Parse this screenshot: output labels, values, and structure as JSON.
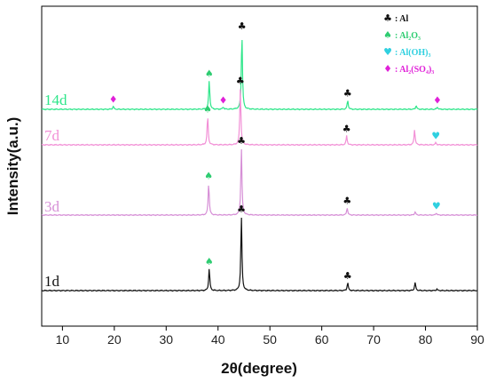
{
  "chart_data": {
    "type": "line",
    "xlabel": "2θ(degree)",
    "ylabel": "Intensity(a.u.)",
    "xlim": [
      6,
      90
    ],
    "xticks": [
      10,
      20,
      30,
      40,
      50,
      60,
      70,
      80,
      90
    ],
    "y_tick_labels": false,
    "legend_position": "top-right",
    "legend": [
      {
        "key": "al",
        "symbol": "♣",
        "color": "#111111",
        "text": ": Al"
      },
      {
        "key": "al2o3",
        "symbol": "♠",
        "color": "#2ecc71",
        "text": ": Al₂O₃"
      },
      {
        "key": "aloh3",
        "symbol": "♥",
        "color": "#2fd0e0",
        "text": ": Al(OH)₃"
      },
      {
        "key": "al2so43",
        "symbol": "♦",
        "color": "#e020d8",
        "text": ": Al₂(SO₄)₃"
      }
    ],
    "series": [
      {
        "name": "14d",
        "color": "#2ee68a",
        "peaks": [
          [
            19.8,
            0.04
          ],
          [
            38.3,
            0.38
          ],
          [
            41.0,
            0.03
          ],
          [
            44.6,
            1.0
          ],
          [
            65.0,
            0.12
          ],
          [
            78.2,
            0.05
          ],
          [
            82.3,
            0.03
          ]
        ],
        "markers": [
          {
            "x": 19.8,
            "symbol": "♦",
            "color": "#e020d8"
          },
          {
            "x": 38.3,
            "symbol": "♠",
            "color": "#2ecc71"
          },
          {
            "x": 41.0,
            "symbol": "♦",
            "color": "#e020d8"
          },
          {
            "x": 44.6,
            "symbol": "♣",
            "color": "#111111"
          },
          {
            "x": 65.0,
            "symbol": "♣",
            "color": "#111111"
          },
          {
            "x": 82.3,
            "symbol": "♦",
            "color": "#e020d8"
          }
        ]
      },
      {
        "name": "7d",
        "color": "#f290d6",
        "peaks": [
          [
            38.0,
            0.38
          ],
          [
            44.3,
            0.75
          ],
          [
            64.8,
            0.12
          ],
          [
            77.9,
            0.2
          ],
          [
            82.0,
            0.03
          ]
        ],
        "markers": [
          {
            "x": 38.0,
            "symbol": "♠",
            "color": "#2ecc71"
          },
          {
            "x": 44.3,
            "symbol": "♣",
            "color": "#111111"
          },
          {
            "x": 64.8,
            "symbol": "♣",
            "color": "#111111"
          },
          {
            "x": 82.0,
            "symbol": "♥",
            "color": "#2fd0e0"
          }
        ]
      },
      {
        "name": "3d",
        "color": "#d68fd6",
        "peaks": [
          [
            38.2,
            0.48
          ],
          [
            44.5,
            1.0
          ],
          [
            64.9,
            0.11
          ],
          [
            78.0,
            0.05
          ],
          [
            82.1,
            0.03
          ]
        ],
        "markers": [
          {
            "x": 38.2,
            "symbol": "♠",
            "color": "#2ecc71"
          },
          {
            "x": 44.5,
            "symbol": "♣",
            "color": "#111111"
          },
          {
            "x": 64.9,
            "symbol": "♣",
            "color": "#111111"
          },
          {
            "x": 82.1,
            "symbol": "♥",
            "color": "#2fd0e0"
          }
        ]
      },
      {
        "name": "1d",
        "color": "#111111",
        "peaks": [
          [
            38.3,
            0.3
          ],
          [
            44.5,
            1.0
          ],
          [
            65.0,
            0.11
          ],
          [
            78.0,
            0.11
          ],
          [
            82.2,
            0.02
          ]
        ],
        "markers": [
          {
            "x": 38.3,
            "symbol": "♠",
            "color": "#2ecc71"
          },
          {
            "x": 44.5,
            "symbol": "♣",
            "color": "#111111"
          },
          {
            "x": 65.0,
            "symbol": "♣",
            "color": "#111111"
          }
        ]
      }
    ]
  }
}
